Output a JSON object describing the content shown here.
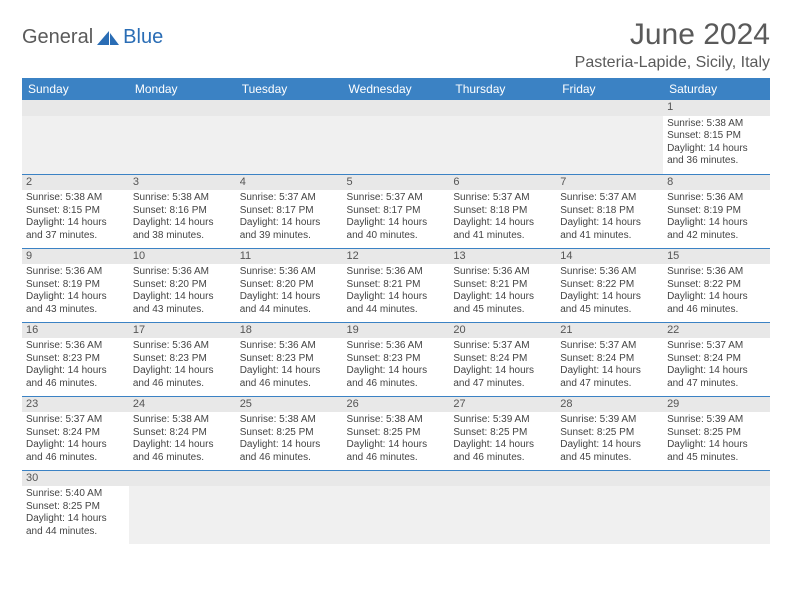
{
  "logo": {
    "part1": "General",
    "part2": "Blue"
  },
  "title": "June 2024",
  "location": "Pasteria-Lapide, Sicily, Italy",
  "colors": {
    "header_bg": "#3b82c4",
    "header_text": "#ffffff",
    "daynum_bg": "#e8e8e8",
    "border": "#3b82c4",
    "text": "#444444",
    "title_text": "#5a5a5a",
    "logo_gray": "#5a5a5a",
    "logo_blue": "#2a6db5"
  },
  "daynames": [
    "Sunday",
    "Monday",
    "Tuesday",
    "Wednesday",
    "Thursday",
    "Friday",
    "Saturday"
  ],
  "weeks": [
    [
      {
        "empty": true
      },
      {
        "empty": true
      },
      {
        "empty": true
      },
      {
        "empty": true
      },
      {
        "empty": true
      },
      {
        "empty": true
      },
      {
        "n": "1",
        "sr": "5:38 AM",
        "ss": "8:15 PM",
        "dl": "14 hours and 36 minutes."
      }
    ],
    [
      {
        "n": "2",
        "sr": "5:38 AM",
        "ss": "8:15 PM",
        "dl": "14 hours and 37 minutes."
      },
      {
        "n": "3",
        "sr": "5:38 AM",
        "ss": "8:16 PM",
        "dl": "14 hours and 38 minutes."
      },
      {
        "n": "4",
        "sr": "5:37 AM",
        "ss": "8:17 PM",
        "dl": "14 hours and 39 minutes."
      },
      {
        "n": "5",
        "sr": "5:37 AM",
        "ss": "8:17 PM",
        "dl": "14 hours and 40 minutes."
      },
      {
        "n": "6",
        "sr": "5:37 AM",
        "ss": "8:18 PM",
        "dl": "14 hours and 41 minutes."
      },
      {
        "n": "7",
        "sr": "5:37 AM",
        "ss": "8:18 PM",
        "dl": "14 hours and 41 minutes."
      },
      {
        "n": "8",
        "sr": "5:36 AM",
        "ss": "8:19 PM",
        "dl": "14 hours and 42 minutes."
      }
    ],
    [
      {
        "n": "9",
        "sr": "5:36 AM",
        "ss": "8:19 PM",
        "dl": "14 hours and 43 minutes."
      },
      {
        "n": "10",
        "sr": "5:36 AM",
        "ss": "8:20 PM",
        "dl": "14 hours and 43 minutes."
      },
      {
        "n": "11",
        "sr": "5:36 AM",
        "ss": "8:20 PM",
        "dl": "14 hours and 44 minutes."
      },
      {
        "n": "12",
        "sr": "5:36 AM",
        "ss": "8:21 PM",
        "dl": "14 hours and 44 minutes."
      },
      {
        "n": "13",
        "sr": "5:36 AM",
        "ss": "8:21 PM",
        "dl": "14 hours and 45 minutes."
      },
      {
        "n": "14",
        "sr": "5:36 AM",
        "ss": "8:22 PM",
        "dl": "14 hours and 45 minutes."
      },
      {
        "n": "15",
        "sr": "5:36 AM",
        "ss": "8:22 PM",
        "dl": "14 hours and 46 minutes."
      }
    ],
    [
      {
        "n": "16",
        "sr": "5:36 AM",
        "ss": "8:23 PM",
        "dl": "14 hours and 46 minutes."
      },
      {
        "n": "17",
        "sr": "5:36 AM",
        "ss": "8:23 PM",
        "dl": "14 hours and 46 minutes."
      },
      {
        "n": "18",
        "sr": "5:36 AM",
        "ss": "8:23 PM",
        "dl": "14 hours and 46 minutes."
      },
      {
        "n": "19",
        "sr": "5:36 AM",
        "ss": "8:23 PM",
        "dl": "14 hours and 46 minutes."
      },
      {
        "n": "20",
        "sr": "5:37 AM",
        "ss": "8:24 PM",
        "dl": "14 hours and 47 minutes."
      },
      {
        "n": "21",
        "sr": "5:37 AM",
        "ss": "8:24 PM",
        "dl": "14 hours and 47 minutes."
      },
      {
        "n": "22",
        "sr": "5:37 AM",
        "ss": "8:24 PM",
        "dl": "14 hours and 47 minutes."
      }
    ],
    [
      {
        "n": "23",
        "sr": "5:37 AM",
        "ss": "8:24 PM",
        "dl": "14 hours and 46 minutes."
      },
      {
        "n": "24",
        "sr": "5:38 AM",
        "ss": "8:24 PM",
        "dl": "14 hours and 46 minutes."
      },
      {
        "n": "25",
        "sr": "5:38 AM",
        "ss": "8:25 PM",
        "dl": "14 hours and 46 minutes."
      },
      {
        "n": "26",
        "sr": "5:38 AM",
        "ss": "8:25 PM",
        "dl": "14 hours and 46 minutes."
      },
      {
        "n": "27",
        "sr": "5:39 AM",
        "ss": "8:25 PM",
        "dl": "14 hours and 46 minutes."
      },
      {
        "n": "28",
        "sr": "5:39 AM",
        "ss": "8:25 PM",
        "dl": "14 hours and 45 minutes."
      },
      {
        "n": "29",
        "sr": "5:39 AM",
        "ss": "8:25 PM",
        "dl": "14 hours and 45 minutes."
      }
    ],
    [
      {
        "n": "30",
        "sr": "5:40 AM",
        "ss": "8:25 PM",
        "dl": "14 hours and 44 minutes."
      },
      {
        "empty": true
      },
      {
        "empty": true
      },
      {
        "empty": true
      },
      {
        "empty": true
      },
      {
        "empty": true
      },
      {
        "empty": true
      }
    ]
  ],
  "labels": {
    "sunrise": "Sunrise: ",
    "sunset": "Sunset: ",
    "daylight": "Daylight: "
  }
}
